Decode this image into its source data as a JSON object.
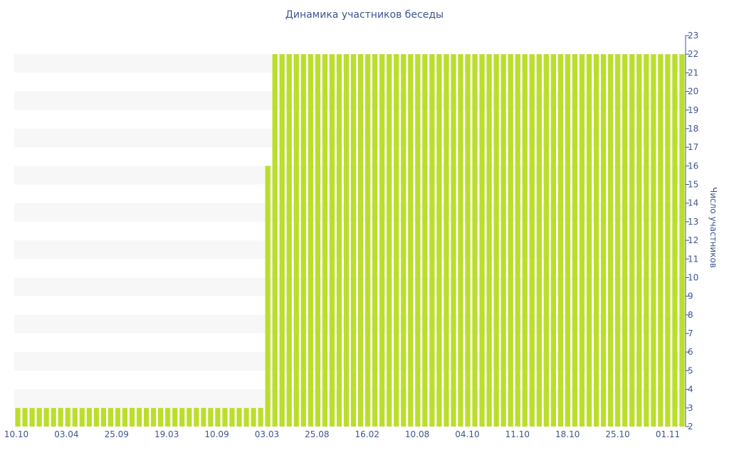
{
  "chart_data": {
    "type": "bar",
    "title": "Динамика участников беседы",
    "xlabel": "",
    "ylabel": "Число участников",
    "ylim": [
      2,
      23
    ],
    "y_ticks": [
      2,
      3,
      4,
      5,
      6,
      7,
      8,
      9,
      10,
      11,
      12,
      13,
      14,
      15,
      16,
      17,
      18,
      19,
      20,
      21,
      22,
      23
    ],
    "x_tick_labels": [
      "10.10",
      "03.04",
      "25.09",
      "19.03",
      "10.09",
      "03.03",
      "25.08",
      "16.02",
      "10.08",
      "04.10",
      "11.10",
      "18.10",
      "25.10",
      "01.11"
    ],
    "grid": "alternating horizontal bands",
    "colors": {
      "bar": "#bbde2b",
      "band": "#f7f7f7",
      "axis": "#3e5591"
    },
    "series": [
      {
        "values": [
          3,
          3,
          3,
          3,
          3,
          3,
          3,
          3,
          3,
          3,
          3,
          3,
          3,
          3,
          3,
          3,
          3,
          3,
          3,
          3,
          3,
          3,
          3,
          3,
          3,
          3,
          3,
          3,
          3,
          3,
          3,
          3,
          3,
          3,
          3,
          16,
          22,
          22,
          22,
          22,
          22,
          22,
          22,
          22,
          22,
          22,
          22,
          22,
          22,
          22,
          22,
          22,
          22,
          22,
          22,
          22,
          22,
          22,
          22,
          22,
          22,
          22,
          22,
          22,
          22,
          22,
          22,
          22,
          22,
          22,
          22,
          22,
          22,
          22,
          22,
          22,
          22,
          22,
          22,
          22,
          22,
          22,
          22,
          22,
          22,
          22,
          22,
          22,
          22,
          22,
          22,
          22,
          22,
          22
        ]
      }
    ]
  }
}
